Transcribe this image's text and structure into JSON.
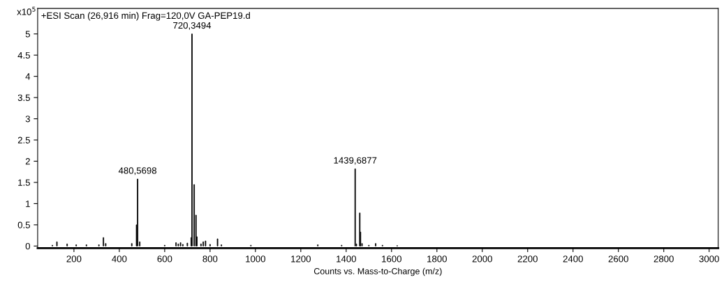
{
  "chart_data": {
    "type": "bar",
    "title": "+ESI Scan (26,916 min) Frag=120,0V GA-PEP19.d",
    "xlabel": "Counts vs. Mass-to-Charge (m/z)",
    "ylabel": "x10$^{5}$",
    "x": [
      105,
      125,
      170,
      210,
      255,
      310,
      330,
      340,
      455,
      476,
      480.5698,
      490,
      600,
      650,
      660,
      670,
      680,
      700,
      717,
      720.3494,
      730,
      738,
      742,
      760,
      770,
      780,
      800,
      833,
      850,
      980,
      1275,
      1380,
      1439.6877,
      1445,
      1460,
      1463,
      1470,
      1500,
      1530,
      1560,
      1625
    ],
    "values": [
      0.02,
      0.1,
      0.05,
      0.03,
      0.03,
      0.03,
      0.2,
      0.06,
      0.06,
      0.5,
      1.58,
      0.1,
      0.02,
      0.08,
      0.05,
      0.08,
      0.04,
      0.07,
      0.2,
      5.0,
      1.45,
      0.73,
      0.22,
      0.05,
      0.1,
      0.12,
      0.04,
      0.17,
      0.03,
      0.02,
      0.03,
      0.02,
      1.82,
      0.05,
      0.78,
      0.33,
      0.06,
      0.02,
      0.06,
      0.02,
      0.01
    ],
    "value_labels": [
      null,
      null,
      null,
      null,
      null,
      null,
      null,
      null,
      null,
      null,
      "480,5698",
      null,
      null,
      null,
      null,
      null,
      null,
      null,
      null,
      "720,3494",
      null,
      null,
      null,
      null,
      null,
      null,
      null,
      null,
      null,
      null,
      null,
      null,
      "1439,6877",
      null,
      null,
      null,
      null,
      null,
      null,
      null,
      null
    ],
    "color": "#000000",
    "xlim": [
      40,
      3040
    ],
    "xticks": [
      200,
      400,
      600,
      800,
      1000,
      1200,
      1400,
      1600,
      1800,
      2000,
      2200,
      2400,
      2600,
      2800,
      3000
    ],
    "ylim": [
      -0.05,
      5.6
    ],
    "yticks": [
      0,
      {
        "value": 0.5,
        "label": "0.5"
      },
      1,
      {
        "value": 1.5,
        "label": "1.5"
      },
      2,
      {
        "value": 2.5,
        "label": "2.5"
      },
      3,
      {
        "value": 3.5,
        "label": "3.5"
      },
      4,
      {
        "value": 4.5,
        "label": "4.5"
      },
      5
    ],
    "grid": false
  }
}
